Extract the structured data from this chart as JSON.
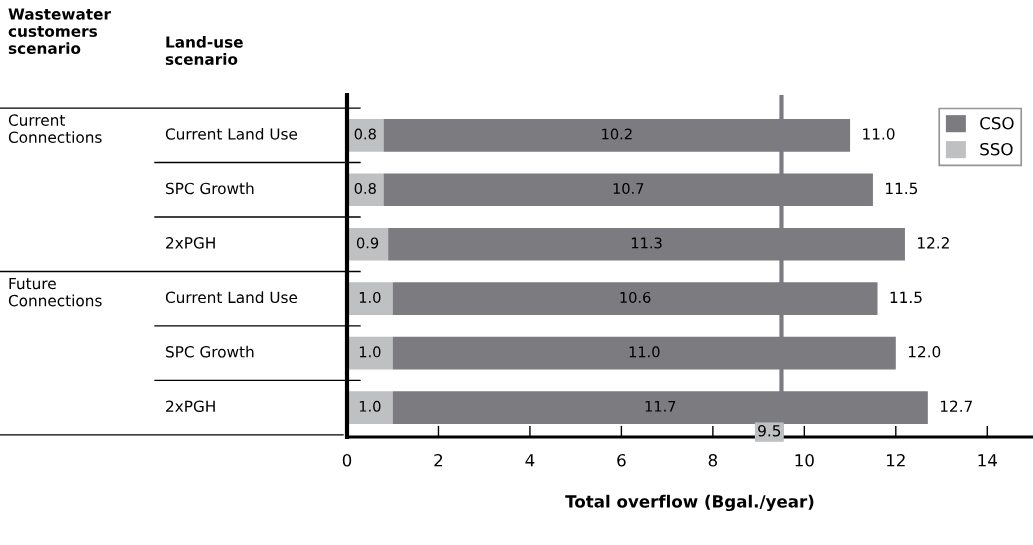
{
  "chart_data": {
    "type": "bar",
    "orientation": "horizontal",
    "stacked": true,
    "categories": [
      "Current Land Use",
      "SPC Growth",
      "2xPGH",
      "Current Land Use",
      "SPC Growth",
      "2xPGH"
    ],
    "series": [
      {
        "name": "SSO",
        "color": "#bfc0c2",
        "values": [
          0.8,
          0.8,
          0.9,
          1.0,
          1.0,
          1.0
        ],
        "value_labels": [
          "0.8",
          "0.8",
          "0.9",
          "1.0",
          "1.0",
          "1.0"
        ]
      },
      {
        "name": "CSO",
        "color": "#7b7b80",
        "values": [
          10.2,
          10.7,
          11.3,
          10.6,
          11.0,
          11.7
        ],
        "value_labels": [
          "10.2",
          "10.7",
          "11.3",
          "10.6",
          "11.0",
          "11.7"
        ]
      }
    ],
    "totals": [
      "11.0",
      "11.5",
      "12.2",
      "11.5",
      "12.0",
      "12.7"
    ],
    "xlabel": "Total overflow (Bgal./year)",
    "xlim": [
      0,
      15
    ],
    "xticks": [
      0,
      2,
      4,
      6,
      8,
      10,
      12,
      14
    ],
    "ref_lines": [
      {
        "axis": "x",
        "value": 9.5,
        "label": "9.5",
        "color": "#7b7b80"
      }
    ],
    "legend": "top right",
    "grid": false,
    "annotations": [
      "Wastewater\ncustomers\nscenario",
      "Land-use\nscenario",
      "Current\nConnections",
      "Future\nConnections"
    ]
  }
}
